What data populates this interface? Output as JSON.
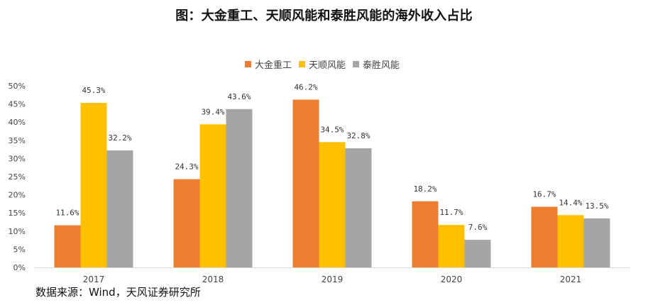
{
  "chart_data": {
    "type": "bar",
    "title": "图：大金重工、天顺风能和泰胜风能的海外收入占比",
    "categories": [
      "2017",
      "2018",
      "2019",
      "2020",
      "2021"
    ],
    "series": [
      {
        "name": "大金重工",
        "color": "#ED7D31",
        "values": [
          11.6,
          24.3,
          46.2,
          18.2,
          16.7
        ],
        "labels": [
          "11.6%",
          "24.3%",
          "46.2%",
          "18.2%",
          "16.7%"
        ]
      },
      {
        "name": "天顺风能",
        "color": "#FFC000",
        "values": [
          45.3,
          39.4,
          34.5,
          11.7,
          14.4
        ],
        "labels": [
          "45.3%",
          "39.4%",
          "34.5%",
          "11.7%",
          "14.4%"
        ]
      },
      {
        "name": "泰胜风能",
        "color": "#A5A5A5",
        "values": [
          32.2,
          43.6,
          32.8,
          7.6,
          13.5
        ],
        "labels": [
          "32.2%",
          "43.6%",
          "32.8%",
          "7.6%",
          "13.5%"
        ]
      }
    ],
    "y_ticks": [
      "0%",
      "5%",
      "10%",
      "15%",
      "20%",
      "25%",
      "30%",
      "35%",
      "40%",
      "45%",
      "50%"
    ],
    "ylim": [
      0,
      50
    ],
    "grid": false,
    "legend_position": "top-center",
    "source": "数据来源：Wind，天风证券研究所"
  }
}
